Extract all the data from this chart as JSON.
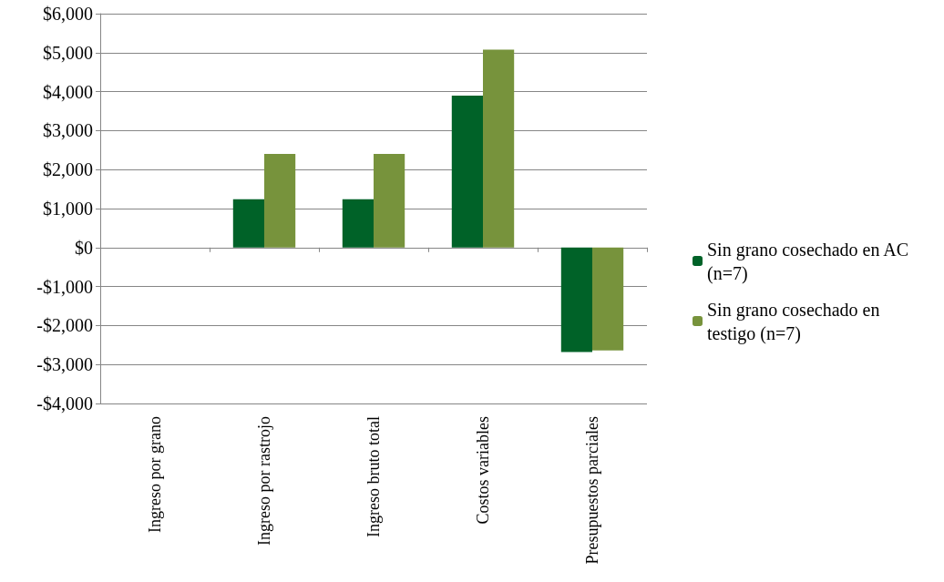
{
  "chart_data": {
    "type": "bar",
    "categories": [
      "Ingreso por grano",
      "Ingreso por rastrojo",
      "Ingreso bruto total",
      "Costos variables",
      "Presupuestos parciales"
    ],
    "series": [
      {
        "name": "Sin grano cosechado en AC (n=7)",
        "color": "#006228",
        "values": [
          0,
          1240,
          1240,
          3900,
          -2680
        ]
      },
      {
        "name": "Sin grano cosechado en testigo (n=7)",
        "color": "#77933c",
        "values": [
          0,
          2400,
          2400,
          5080,
          -2640
        ]
      }
    ],
    "ylim": [
      -4000,
      6000
    ],
    "yticks": [
      {
        "value": -4000,
        "label": "-$4,000"
      },
      {
        "value": -3000,
        "label": "-$3,000"
      },
      {
        "value": -2000,
        "label": "-$2,000"
      },
      {
        "value": -1000,
        "label": "-$1,000"
      },
      {
        "value": 0,
        "label": "$0"
      },
      {
        "value": 1000,
        "label": "$1,000"
      },
      {
        "value": 2000,
        "label": "$2,000"
      },
      {
        "value": 3000,
        "label": "$3,000"
      },
      {
        "value": 4000,
        "label": "$4,000"
      },
      {
        "value": 5000,
        "label": "$5,000"
      },
      {
        "value": 6000,
        "label": "$6,000"
      }
    ],
    "grid": "y",
    "legend": "right"
  }
}
